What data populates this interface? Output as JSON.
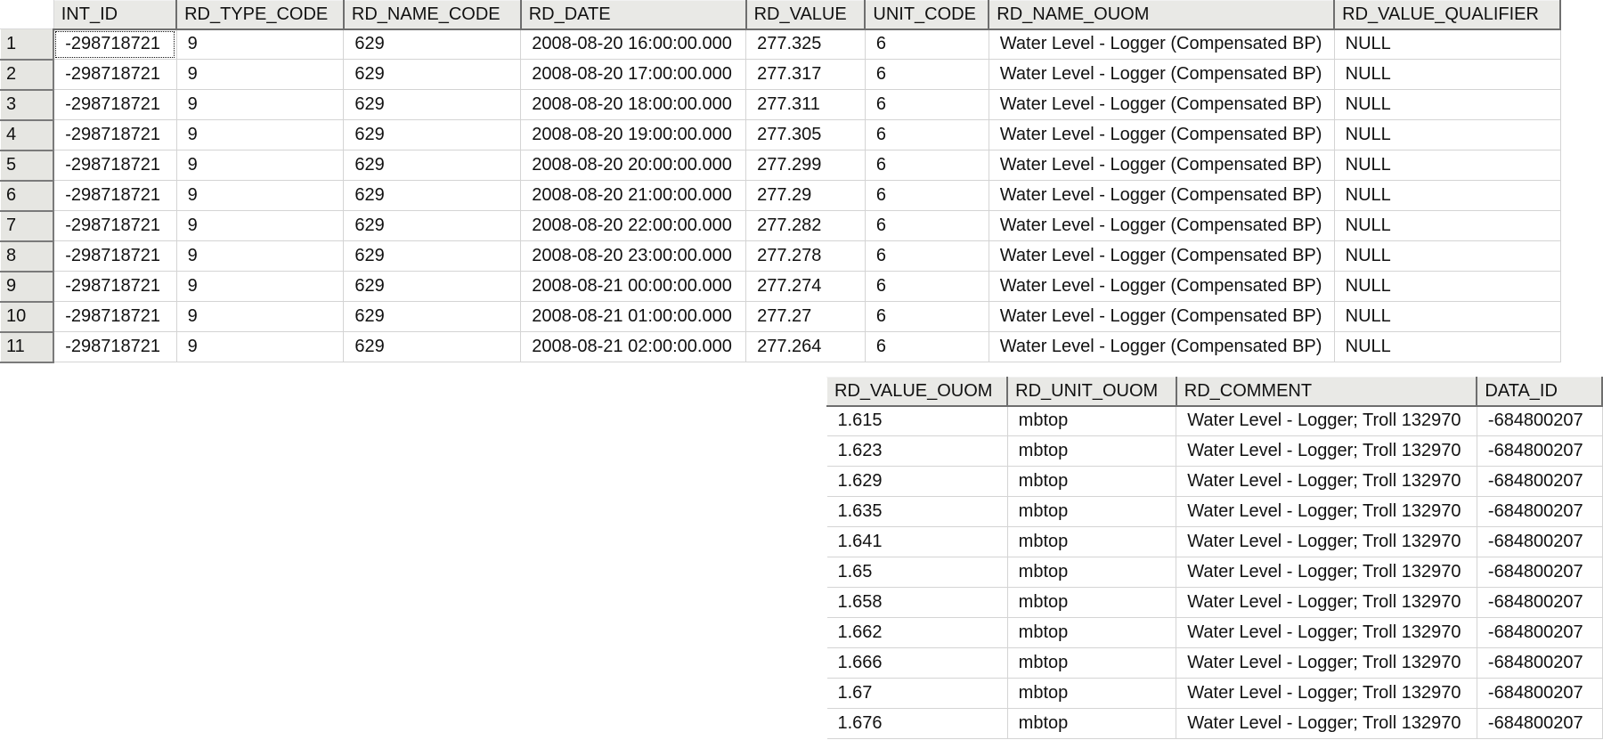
{
  "grid_top": {
    "columns": [
      "INT_ID",
      "RD_TYPE_CODE",
      "RD_NAME_CODE",
      "RD_DATE",
      "RD_VALUE",
      "UNIT_CODE",
      "RD_NAME_OUOM",
      "RD_VALUE_QUALIFIER"
    ],
    "rows": [
      {
        "num": "1",
        "cells": [
          "-298718721",
          "9",
          "629",
          "2008-08-20 16:00:00.000",
          "277.325",
          "6",
          "Water Level - Logger (Compensated BP)",
          "NULL"
        ]
      },
      {
        "num": "2",
        "cells": [
          "-298718721",
          "9",
          "629",
          "2008-08-20 17:00:00.000",
          "277.317",
          "6",
          "Water Level - Logger (Compensated BP)",
          "NULL"
        ]
      },
      {
        "num": "3",
        "cells": [
          "-298718721",
          "9",
          "629",
          "2008-08-20 18:00:00.000",
          "277.311",
          "6",
          "Water Level - Logger (Compensated BP)",
          "NULL"
        ]
      },
      {
        "num": "4",
        "cells": [
          "-298718721",
          "9",
          "629",
          "2008-08-20 19:00:00.000",
          "277.305",
          "6",
          "Water Level - Logger (Compensated BP)",
          "NULL"
        ]
      },
      {
        "num": "5",
        "cells": [
          "-298718721",
          "9",
          "629",
          "2008-08-20 20:00:00.000",
          "277.299",
          "6",
          "Water Level - Logger (Compensated BP)",
          "NULL"
        ]
      },
      {
        "num": "6",
        "cells": [
          "-298718721",
          "9",
          "629",
          "2008-08-20 21:00:00.000",
          "277.29",
          "6",
          "Water Level - Logger (Compensated BP)",
          "NULL"
        ]
      },
      {
        "num": "7",
        "cells": [
          "-298718721",
          "9",
          "629",
          "2008-08-20 22:00:00.000",
          "277.282",
          "6",
          "Water Level - Logger (Compensated BP)",
          "NULL"
        ]
      },
      {
        "num": "8",
        "cells": [
          "-298718721",
          "9",
          "629",
          "2008-08-20 23:00:00.000",
          "277.278",
          "6",
          "Water Level - Logger (Compensated BP)",
          "NULL"
        ]
      },
      {
        "num": "9",
        "cells": [
          "-298718721",
          "9",
          "629",
          "2008-08-21 00:00:00.000",
          "277.274",
          "6",
          "Water Level - Logger (Compensated BP)",
          "NULL"
        ]
      },
      {
        "num": "10",
        "cells": [
          "-298718721",
          "9",
          "629",
          "2008-08-21 01:00:00.000",
          "277.27",
          "6",
          "Water Level - Logger (Compensated BP)",
          "NULL"
        ]
      },
      {
        "num": "11",
        "cells": [
          "-298718721",
          "9",
          "629",
          "2008-08-21 02:00:00.000",
          "277.264",
          "6",
          "Water Level - Logger (Compensated BP)",
          "NULL"
        ]
      }
    ]
  },
  "grid_bottom": {
    "columns": [
      "RD_VALUE_OUOM",
      "RD_UNIT_OUOM",
      "RD_COMMENT",
      "DATA_ID"
    ],
    "rows": [
      {
        "cells": [
          "1.615",
          "mbtop",
          "Water Level - Logger; Troll 132970",
          "-684800207"
        ]
      },
      {
        "cells": [
          "1.623",
          "mbtop",
          "Water Level - Logger; Troll 132970",
          "-684800207"
        ]
      },
      {
        "cells": [
          "1.629",
          "mbtop",
          "Water Level - Logger; Troll 132970",
          "-684800207"
        ]
      },
      {
        "cells": [
          "1.635",
          "mbtop",
          "Water Level - Logger; Troll 132970",
          "-684800207"
        ]
      },
      {
        "cells": [
          "1.641",
          "mbtop",
          "Water Level - Logger; Troll 132970",
          "-684800207"
        ]
      },
      {
        "cells": [
          "1.65",
          "mbtop",
          "Water Level - Logger; Troll 132970",
          "-684800207"
        ]
      },
      {
        "cells": [
          "1.658",
          "mbtop",
          "Water Level - Logger; Troll 132970",
          "-684800207"
        ]
      },
      {
        "cells": [
          "1.662",
          "mbtop",
          "Water Level - Logger; Troll 132970",
          "-684800207"
        ]
      },
      {
        "cells": [
          "1.666",
          "mbtop",
          "Water Level - Logger; Troll 132970",
          "-684800207"
        ]
      },
      {
        "cells": [
          "1.67",
          "mbtop",
          "Water Level - Logger; Troll 132970",
          "-684800207"
        ]
      },
      {
        "cells": [
          "1.676",
          "mbtop",
          "Water Level - Logger; Troll 132970",
          "-684800207"
        ]
      }
    ]
  }
}
